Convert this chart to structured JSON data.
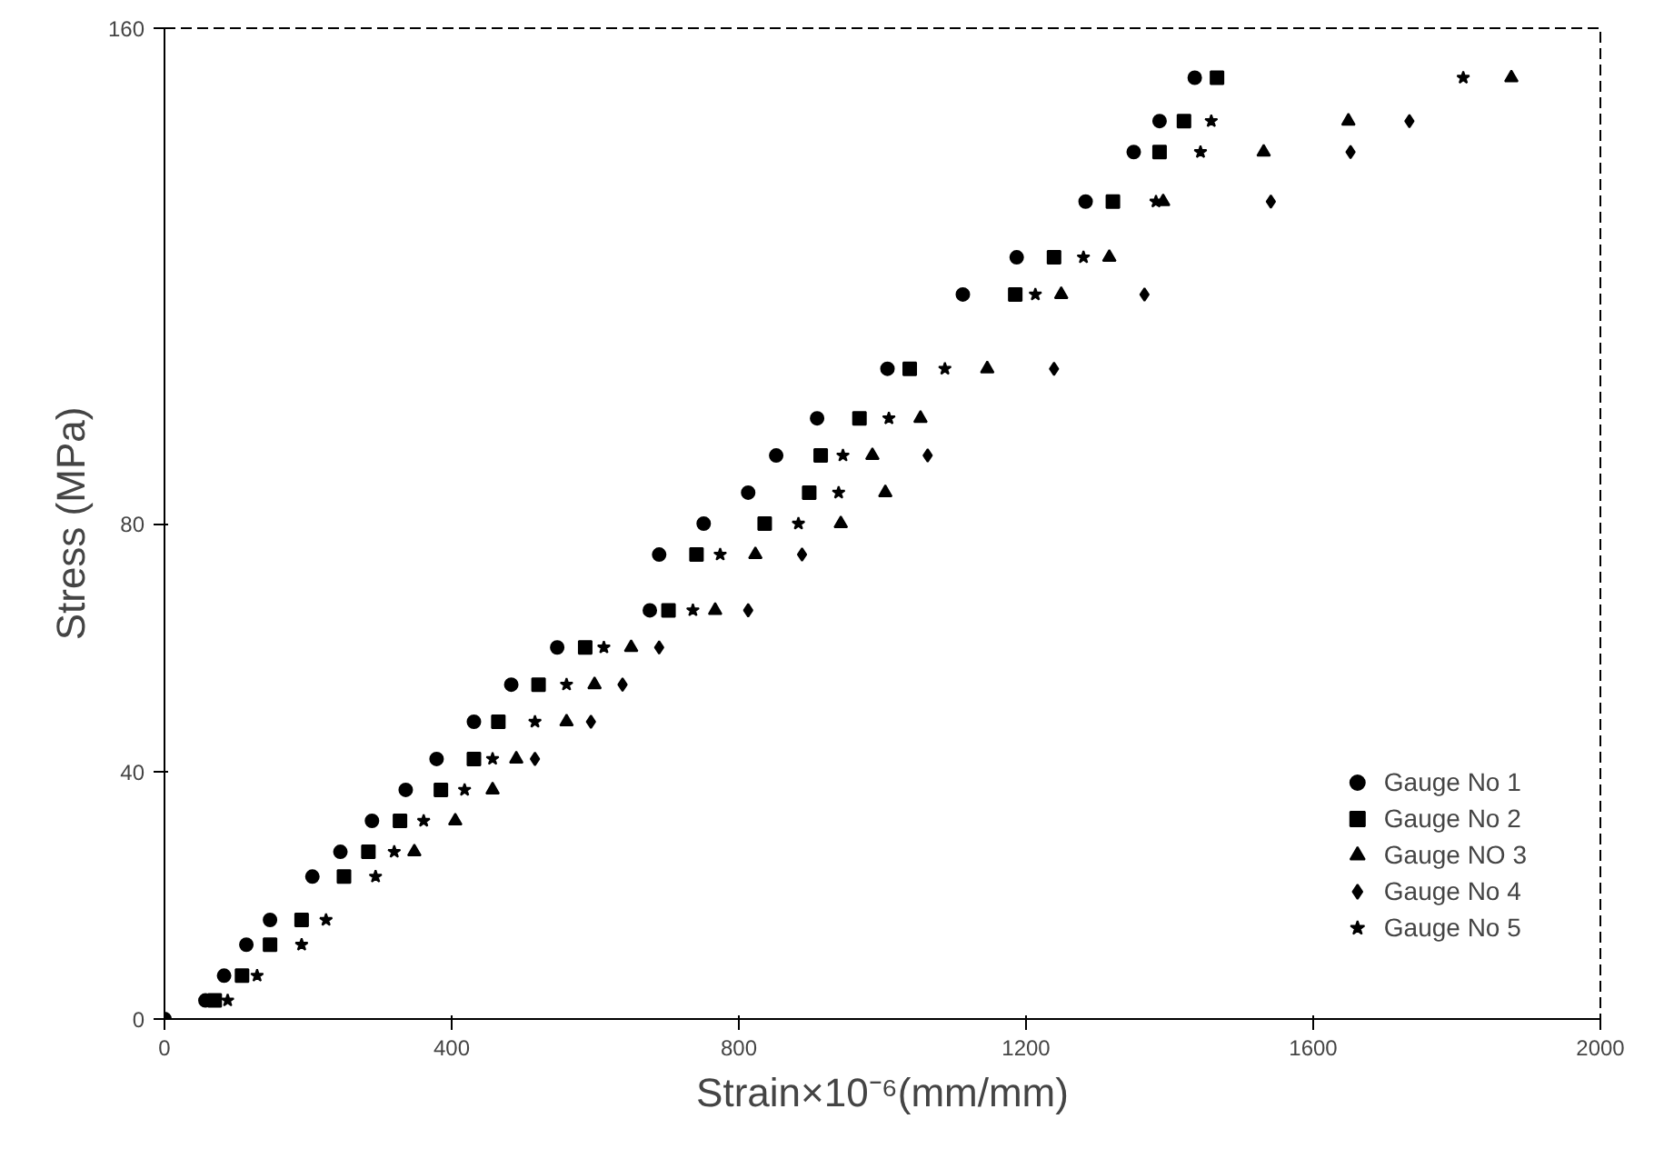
{
  "chart_data": {
    "type": "scatter",
    "xlabel": "Strain×10⁻⁶(mm/mm)",
    "ylabel": "Stress (MPa)",
    "xlim": [
      0,
      2000
    ],
    "ylim": [
      0,
      160
    ],
    "xticks": [
      0,
      400,
      800,
      1200,
      1600,
      2000
    ],
    "yticks": [
      0,
      40,
      80,
      160
    ],
    "grid": false,
    "legend": "bottom right",
    "series": [
      {
        "name": "Gauge No 1",
        "color": "#000000",
        "marker": "circle",
        "x": [
          0,
          57,
          83,
          114,
          147,
          206,
          245,
          289,
          336,
          379,
          431,
          483,
          547,
          676,
          689,
          751,
          813,
          852,
          909,
          1007,
          1112,
          1187,
          1283,
          1350,
          1386,
          1435
        ],
        "values": [
          0,
          3,
          7,
          12,
          16,
          23,
          27,
          32,
          37,
          42,
          48,
          54,
          60,
          66,
          75,
          80,
          85,
          91,
          97,
          105,
          117,
          123,
          132,
          140,
          145,
          152
        ]
      },
      {
        "name": "Gauge No 2",
        "color": "#000000",
        "marker": "square",
        "x": [
          70,
          108,
          147,
          191,
          250,
          284,
          328,
          385,
          431,
          465,
          521,
          586,
          702,
          741,
          836,
          898,
          914,
          968,
          1038,
          1185,
          1239,
          1321,
          1386,
          1420,
          1466
        ],
        "values": [
          3,
          7,
          12,
          16,
          23,
          27,
          32,
          37,
          42,
          48,
          54,
          60,
          66,
          75,
          80,
          85,
          91,
          97,
          105,
          117,
          123,
          132,
          140,
          145,
          152
        ]
      },
      {
        "name": "Gauge NO 3",
        "color": "#000000",
        "marker": "triangle",
        "x": [
          348,
          405,
          457,
          490,
          560,
          599,
          650,
          767,
          823,
          942,
          1004,
          986,
          1053,
          1146,
          1249,
          1316,
          1391,
          1531,
          1649,
          1876
        ],
        "values": [
          27,
          32,
          37,
          42,
          48,
          54,
          60,
          66,
          75,
          80,
          85,
          91,
          97,
          105,
          117,
          123,
          132,
          140,
          145,
          152
        ]
      },
      {
        "name": "Gauge No 4",
        "color": "#000000",
        "marker": "diamond",
        "x": [
          516,
          594,
          638,
          689,
          813,
          888,
          1063,
          1239,
          1365,
          1541,
          1652,
          1734
        ],
        "values": [
          42,
          48,
          54,
          60,
          66,
          75,
          91,
          105,
          117,
          132,
          140,
          145
        ]
      },
      {
        "name": "Gauge No 5",
        "color": "#000000",
        "marker": "star",
        "x": [
          88,
          129,
          191,
          225,
          294,
          320,
          361,
          418,
          457,
          516,
          560,
          612,
          736,
          774,
          883,
          939,
          945,
          1009,
          1087,
          1213,
          1280,
          1381,
          1443,
          1458,
          1809
        ],
        "values": [
          3,
          7,
          12,
          16,
          23,
          27,
          32,
          37,
          42,
          48,
          54,
          60,
          66,
          75,
          80,
          85,
          91,
          97,
          105,
          117,
          123,
          132,
          140,
          145,
          152
        ]
      }
    ]
  }
}
